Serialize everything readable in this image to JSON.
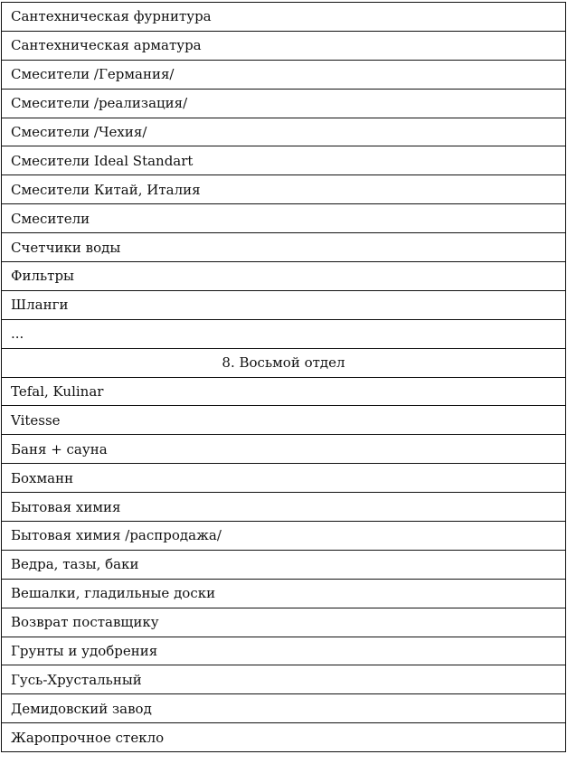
{
  "rows": [
    {
      "text": "Сантехническая фурнитура"
    },
    {
      "text": "Сантехническая арматура"
    },
    {
      "text": "Смесители /Германия/"
    },
    {
      "text": "Смесители /реализация/"
    },
    {
      "text": "Смесители /Чехия/"
    },
    {
      "text": "Смесители Ideal Standart"
    },
    {
      "text": "Смесители Китай, Италия"
    },
    {
      "text": "Смесители"
    },
    {
      "text": "Счетчики воды"
    },
    {
      "text": "Фильтры"
    },
    {
      "text": "Шланги"
    },
    {
      "text": "..."
    },
    {
      "text": "8. Восьмой отдел",
      "header": true
    },
    {
      "text": "Tefal, Kulinar"
    },
    {
      "text": "Vitesse"
    },
    {
      "text": "Баня + сауна"
    },
    {
      "text": "Бохманн"
    },
    {
      "text": "Бытовая химия"
    },
    {
      "text": "Бытовая химия /распродажа/"
    },
    {
      "text": "Ведра, тазы, баки"
    },
    {
      "text": "Вешалки, гладильные доски"
    },
    {
      "text": "Возврат поставщику"
    },
    {
      "text": "Грунты и удобрения"
    },
    {
      "text": "Гусь-Хрустальный"
    },
    {
      "text": "Демидовский завод"
    },
    {
      "text": "Жаропрочное стекло"
    }
  ]
}
